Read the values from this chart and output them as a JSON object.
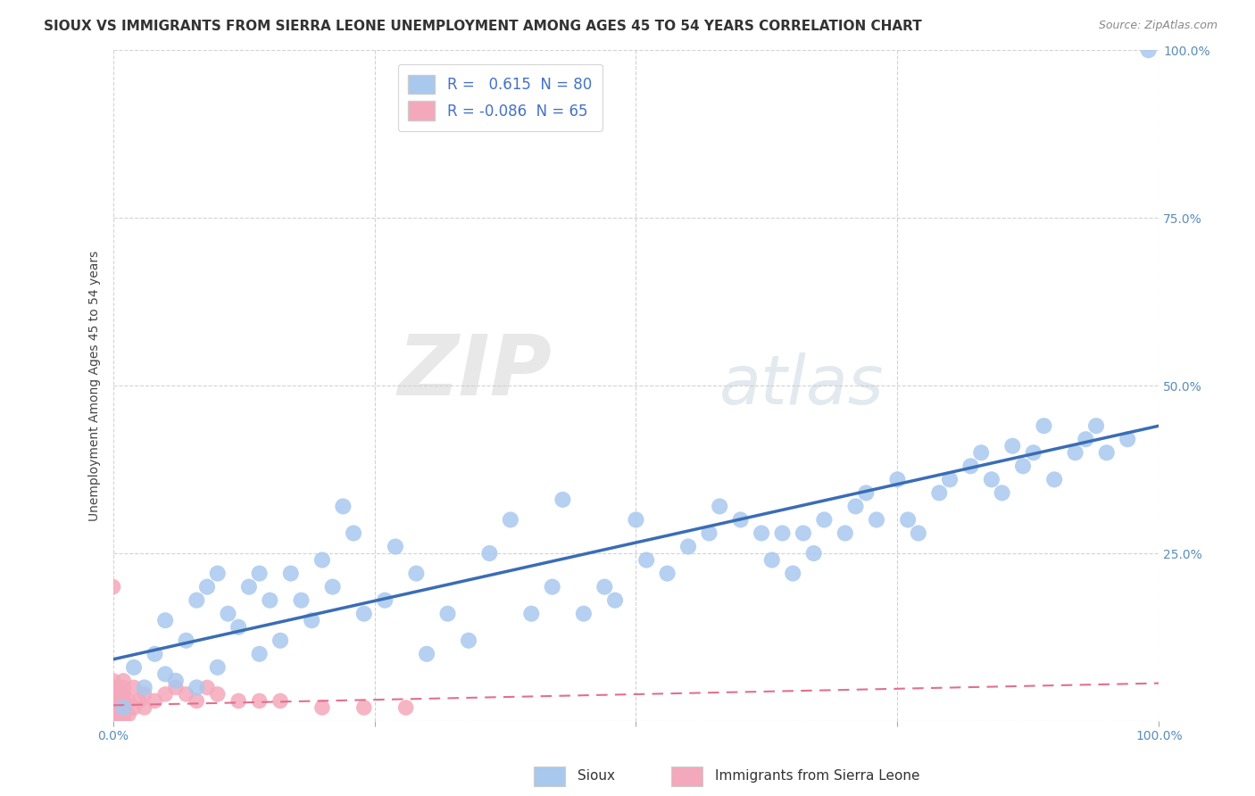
{
  "title": "SIOUX VS IMMIGRANTS FROM SIERRA LEONE UNEMPLOYMENT AMONG AGES 45 TO 54 YEARS CORRELATION CHART",
  "source": "Source: ZipAtlas.com",
  "ylabel": "Unemployment Among Ages 45 to 54 years",
  "xlim": [
    0,
    1.0
  ],
  "ylim": [
    0,
    1.0
  ],
  "xticks": [
    0.0,
    0.25,
    0.5,
    0.75,
    1.0
  ],
  "yticks": [
    0.0,
    0.25,
    0.5,
    0.75,
    1.0
  ],
  "xticklabels": [
    "0.0%",
    "",
    "",
    "",
    "100.0%"
  ],
  "yticklabels_right": [
    "",
    "25.0%",
    "50.0%",
    "75.0%",
    "100.0%"
  ],
  "sioux_R": 0.615,
  "sioux_N": 80,
  "sierra_leone_R": -0.086,
  "sierra_leone_N": 65,
  "sioux_color": "#A8C8EE",
  "sierra_leone_color": "#F4A8BB",
  "sioux_line_color": "#3A6DB5",
  "sierra_leone_line_color": "#E07090",
  "background_color": "#FFFFFF",
  "grid_color": "#C8C8C8",
  "title_color": "#333333",
  "tick_color": "#5B8DB8",
  "watermark_zip": "ZIP",
  "watermark_atlas": "atlas",
  "sioux_x": [
    0.01,
    0.02,
    0.03,
    0.04,
    0.05,
    0.05,
    0.06,
    0.07,
    0.08,
    0.08,
    0.09,
    0.1,
    0.1,
    0.11,
    0.12,
    0.13,
    0.14,
    0.14,
    0.15,
    0.16,
    0.17,
    0.18,
    0.19,
    0.2,
    0.21,
    0.22,
    0.23,
    0.24,
    0.26,
    0.27,
    0.29,
    0.3,
    0.32,
    0.34,
    0.36,
    0.38,
    0.4,
    0.42,
    0.43,
    0.45,
    0.47,
    0.48,
    0.5,
    0.51,
    0.53,
    0.55,
    0.57,
    0.58,
    0.6,
    0.62,
    0.63,
    0.64,
    0.65,
    0.66,
    0.67,
    0.68,
    0.7,
    0.71,
    0.72,
    0.73,
    0.75,
    0.76,
    0.77,
    0.79,
    0.8,
    0.82,
    0.83,
    0.84,
    0.85,
    0.86,
    0.87,
    0.88,
    0.89,
    0.9,
    0.92,
    0.93,
    0.94,
    0.95,
    0.97,
    0.99
  ],
  "sioux_y": [
    0.02,
    0.08,
    0.05,
    0.1,
    0.07,
    0.15,
    0.06,
    0.12,
    0.05,
    0.18,
    0.2,
    0.08,
    0.22,
    0.16,
    0.14,
    0.2,
    0.1,
    0.22,
    0.18,
    0.12,
    0.22,
    0.18,
    0.15,
    0.24,
    0.2,
    0.32,
    0.28,
    0.16,
    0.18,
    0.26,
    0.22,
    0.1,
    0.16,
    0.12,
    0.25,
    0.3,
    0.16,
    0.2,
    0.33,
    0.16,
    0.2,
    0.18,
    0.3,
    0.24,
    0.22,
    0.26,
    0.28,
    0.32,
    0.3,
    0.28,
    0.24,
    0.28,
    0.22,
    0.28,
    0.25,
    0.3,
    0.28,
    0.32,
    0.34,
    0.3,
    0.36,
    0.3,
    0.28,
    0.34,
    0.36,
    0.38,
    0.4,
    0.36,
    0.34,
    0.41,
    0.38,
    0.4,
    0.44,
    0.36,
    0.4,
    0.42,
    0.44,
    0.4,
    0.42,
    1.0
  ],
  "sierra_leone_x": [
    0.0,
    0.0,
    0.0,
    0.0,
    0.0,
    0.0,
    0.0,
    0.0,
    0.0,
    0.0,
    0.0,
    0.0,
    0.0,
    0.0,
    0.0,
    0.0,
    0.0,
    0.0,
    0.0,
    0.0,
    0.0,
    0.0,
    0.0,
    0.0,
    0.0,
    0.0,
    0.0,
    0.0,
    0.0,
    0.0,
    0.005,
    0.005,
    0.005,
    0.005,
    0.005,
    0.01,
    0.01,
    0.01,
    0.01,
    0.01,
    0.01,
    0.01,
    0.01,
    0.01,
    0.01,
    0.015,
    0.015,
    0.02,
    0.02,
    0.025,
    0.03,
    0.03,
    0.04,
    0.05,
    0.06,
    0.07,
    0.08,
    0.09,
    0.1,
    0.12,
    0.14,
    0.16,
    0.2,
    0.24,
    0.28
  ],
  "sierra_leone_y": [
    0.0,
    0.0,
    0.0,
    0.0,
    0.0,
    0.0,
    0.0,
    0.0,
    0.0,
    0.0,
    0.01,
    0.01,
    0.01,
    0.01,
    0.01,
    0.01,
    0.02,
    0.02,
    0.02,
    0.02,
    0.02,
    0.03,
    0.03,
    0.03,
    0.04,
    0.04,
    0.05,
    0.05,
    0.06,
    0.2,
    0.0,
    0.0,
    0.0,
    0.01,
    0.02,
    0.0,
    0.0,
    0.01,
    0.01,
    0.02,
    0.02,
    0.03,
    0.04,
    0.05,
    0.06,
    0.01,
    0.03,
    0.02,
    0.05,
    0.03,
    0.02,
    0.04,
    0.03,
    0.04,
    0.05,
    0.04,
    0.03,
    0.05,
    0.04,
    0.03,
    0.03,
    0.03,
    0.02,
    0.02,
    0.02
  ],
  "legend_sioux_label": "R =   0.615  N = 80",
  "legend_sl_label": "R = -0.086  N = 65"
}
